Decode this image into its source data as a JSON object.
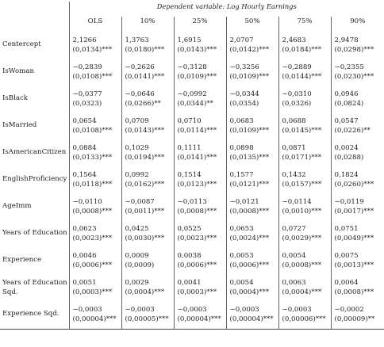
{
  "header": {
    "dependent_variable": "Dependent variable: Log Hourly Earnings",
    "columns": [
      "OLS",
      "10%",
      "25%",
      "50%",
      "75%",
      "90%"
    ]
  },
  "rows": [
    {
      "label_lines": [
        "Centercept"
      ],
      "coef": [
        "2,1266",
        "1,3763",
        "1,6915",
        "2,0707",
        "2,4683",
        "2,9478"
      ],
      "se": [
        "(0,0134)***",
        "(0,0180)***",
        "(0,0143)***",
        "(0,0142)***",
        "(0,0184)***",
        "(0,0298)***"
      ]
    },
    {
      "label_lines": [
        "IsWoman"
      ],
      "coef": [
        "−0,2839",
        "−0,2626",
        "−0,3128",
        "−0,3256",
        "−0,2889",
        "−0,2355"
      ],
      "se": [
        "(0,0108)***",
        "(0,0141)***",
        "(0,0109)***",
        "(0,0109)***",
        "(0,0144)***",
        "(0,0230)***"
      ]
    },
    {
      "label_lines": [
        "IsBlack"
      ],
      "coef": [
        "−0,0377",
        "−0,0646",
        "−0,0992",
        "−0,0344",
        "−0,0310",
        "0,0946"
      ],
      "se": [
        "(0,0323)",
        "(0,0266)**",
        "(0,0344)**",
        "(0,0354)",
        "(0,0326)",
        "(0,0824)"
      ]
    },
    {
      "label_lines": [
        "IsMarried"
      ],
      "coef": [
        "0,0654",
        "0,0709",
        "0,0710",
        "0,0683",
        "0,0688",
        "0,0547"
      ],
      "se": [
        "(0,0108)***",
        "(0,0143)***",
        "(0,0114)***",
        "(0,0109)***",
        "(0,0145)***",
        "(0,0226)**"
      ]
    },
    {
      "label_lines": [
        "IsAmericanCitizen"
      ],
      "coef": [
        "0,0884",
        "0,1029",
        "0,1111",
        "0,0898",
        "0,0871",
        "0,0024"
      ],
      "se": [
        "(0,0133)***",
        "(0,0194)***",
        "(0,0141)***",
        "(0,0135)***",
        "(0,0171)***",
        "(0,0288)"
      ]
    },
    {
      "label_lines": [
        "EnglishProficiency"
      ],
      "coef": [
        "0,1564",
        "0,0992",
        "0,1514",
        "0,1577",
        "0,1432",
        "0,1824"
      ],
      "se": [
        "(0,0118)***",
        "(0,0162)***",
        "(0,0123)***",
        "(0,0121)***",
        "(0,0157)***",
        "(0,0260)***"
      ]
    },
    {
      "label_lines": [
        "AgeImm"
      ],
      "coef": [
        "−0,0110",
        "−0,0087",
        "−0,0113",
        "−0,0121",
        "−0,0114",
        "−0,0119"
      ],
      "se": [
        "(0,0008)***",
        "(0,0011)***",
        "(0,0008)***",
        "(0,0008)***",
        "(0,0010)***",
        "(0,0017)***"
      ]
    },
    {
      "label_lines": [
        "Years of Education"
      ],
      "coef": [
        "0,0623",
        "0,0425",
        "0,0525",
        "0,0653",
        "0,0727",
        "0,0751"
      ],
      "se": [
        "(0,0023)***",
        "(0,0030)***",
        "(0,0023)***",
        "(0,0024)***",
        "(0,0029)***",
        "(0,0049)***"
      ]
    },
    {
      "label_lines": [
        "Experience"
      ],
      "coef": [
        "0,0046",
        "0,0009",
        "0,0038",
        "0,0053",
        "0,0054",
        "0,0075"
      ],
      "se": [
        "(0,0006)***",
        "(0,0009)",
        "(0,0006)***",
        "(0,0006)***",
        "(0,0008)***",
        "(0,0013)***"
      ]
    },
    {
      "label_lines": [
        "Years of Education",
        "Sqd."
      ],
      "coef": [
        "0,0051",
        "0,0029",
        "0,0041",
        "0,0054",
        "0,0063",
        "0,0064"
      ],
      "se": [
        "(0,0003)***",
        "(0,0004)***",
        "(0,0003)***",
        "(0,0004)***",
        "(0,0004)***",
        "(0,0008)***"
      ]
    },
    {
      "label_lines": [
        "Experience Sqd."
      ],
      "coef": [
        "−0,0003",
        "−0,0003",
        "−0,0003",
        "−0,0003",
        "−0,0003",
        "−0,0002"
      ],
      "se": [
        "(0,00004)***",
        "(0,00005)***",
        "(0,00004)***",
        "(0,00004)***",
        "(0,00006)***",
        "(0,00009)**"
      ]
    }
  ]
}
